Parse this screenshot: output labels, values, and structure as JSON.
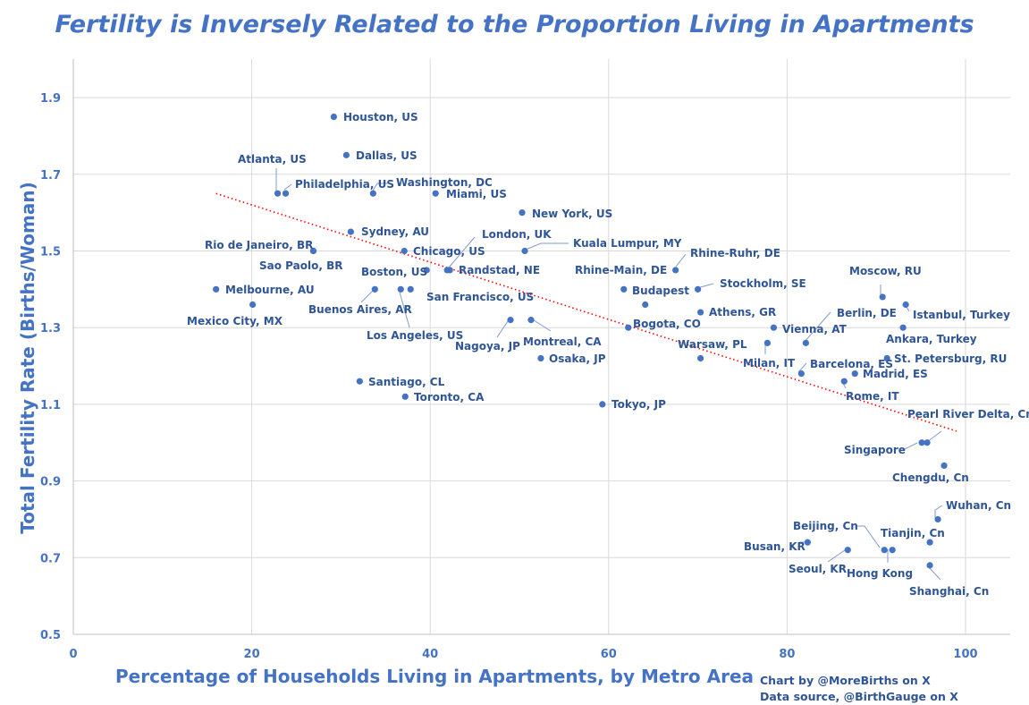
{
  "chart_data": {
    "type": "scatter",
    "title": "Fertility is Inversely Related to the Proportion Living in Apartments",
    "xlabel": "Percentage of Households Living in Apartments, by Metro Area",
    "ylabel": "Total Fertility Rate (Births/Woman)",
    "xlim": [
      0,
      105
    ],
    "ylim": [
      0.5,
      2.0
    ],
    "x_ticks": [
      "0",
      "20",
      "40",
      "60",
      "80",
      "100"
    ],
    "y_ticks": [
      "0.5",
      "0.7",
      "0.9",
      "1.1",
      "1.3",
      "1.5",
      "1.7",
      "1.9"
    ],
    "grid": "on",
    "trendline": {
      "style": "dotted",
      "color": "#ff0000",
      "x": [
        16,
        99
      ],
      "y": [
        1.65,
        1.03
      ]
    },
    "marker_color": "#4472c4",
    "points": [
      {
        "label": "Houston, US",
        "x": 29.2,
        "y": 1.85
      },
      {
        "label": "Dallas, US",
        "x": 30.6,
        "y": 1.75
      },
      {
        "label": "Atlanta, US",
        "x": 22.9,
        "y": 1.65
      },
      {
        "label": "Philadelphia, US",
        "x": 23.8,
        "y": 1.65
      },
      {
        "label": "Washington, DC",
        "x": 33.6,
        "y": 1.65
      },
      {
        "label": "Miami, US",
        "x": 40.6,
        "y": 1.65
      },
      {
        "label": "New York, US",
        "x": 50.3,
        "y": 1.6
      },
      {
        "label": "Sydney, AU",
        "x": 31.1,
        "y": 1.55
      },
      {
        "label": "Rio de Janeiro, BR",
        "x": 26.9,
        "y": 1.5
      },
      {
        "label": "Sao Paolo, BR",
        "x": 26.9,
        "y": 1.5
      },
      {
        "label": "Chicago, US",
        "x": 37.1,
        "y": 1.5
      },
      {
        "label": "London, UK",
        "x": 42.2,
        "y": 1.45
      },
      {
        "label": "Kuala Lumpur, MY",
        "x": 50.6,
        "y": 1.5
      },
      {
        "label": "Boston, US",
        "x": 39.6,
        "y": 1.45
      },
      {
        "label": "Randstad, NE",
        "x": 41.9,
        "y": 1.45
      },
      {
        "label": "Rhine-Ruhr, DE",
        "x": 67.5,
        "y": 1.45
      },
      {
        "label": "Rhine-Main, DE",
        "x": 61.7,
        "y": 1.4
      },
      {
        "label": "Budapest",
        "x": 64.1,
        "y": 1.36
      },
      {
        "label": "Stockholm, SE",
        "x": 70,
        "y": 1.4
      },
      {
        "label": "Melbourne, AU",
        "x": 16,
        "y": 1.4
      },
      {
        "label": "Mexico City, MX",
        "x": 20.1,
        "y": 1.36
      },
      {
        "label": "Buenos Aires, AR",
        "x": 33.8,
        "y": 1.4
      },
      {
        "label": "Los Angeles, US",
        "x": 36.7,
        "y": 1.4
      },
      {
        "label": "San Francisco, US",
        "x": 37.8,
        "y": 1.4
      },
      {
        "label": "Nagoya, JP",
        "x": 49,
        "y": 1.32
      },
      {
        "label": "Montreal, CA",
        "x": 51.3,
        "y": 1.32
      },
      {
        "label": "Bogota, CO",
        "x": 62.2,
        "y": 1.3
      },
      {
        "label": "Athens, GR",
        "x": 70.3,
        "y": 1.34
      },
      {
        "label": "Vienna, AT",
        "x": 78.5,
        "y": 1.3
      },
      {
        "label": "Berlin, DE",
        "x": 82.1,
        "y": 1.26
      },
      {
        "label": "Moscow, RU",
        "x": 90.7,
        "y": 1.38
      },
      {
        "label": "Istanbul, Turkey",
        "x": 93.3,
        "y": 1.36
      },
      {
        "label": "Ankara, Turkey",
        "x": 93,
        "y": 1.3
      },
      {
        "label": "Milan, IT",
        "x": 77.8,
        "y": 1.26
      },
      {
        "label": "Warsaw, PL",
        "x": 70.3,
        "y": 1.22
      },
      {
        "label": "Osaka, JP",
        "x": 52.4,
        "y": 1.22
      },
      {
        "label": "Barcelona, ES",
        "x": 81.6,
        "y": 1.18
      },
      {
        "label": "St. Petersburg, RU",
        "x": 91.2,
        "y": 1.22
      },
      {
        "label": "Madrid, ES",
        "x": 87.6,
        "y": 1.18
      },
      {
        "label": "Rome, IT",
        "x": 86.4,
        "y": 1.16
      },
      {
        "label": "Santiago, CL",
        "x": 32.1,
        "y": 1.16
      },
      {
        "label": "Toronto, CA",
        "x": 37.2,
        "y": 1.12
      },
      {
        "label": "Tokyo, JP",
        "x": 59.3,
        "y": 1.1
      },
      {
        "label": "Pearl River Delta, Cn",
        "x": 95.7,
        "y": 1.0
      },
      {
        "label": "Singapore",
        "x": 95.1,
        "y": 1.0
      },
      {
        "label": "Chengdu, Cn",
        "x": 97.6,
        "y": 0.94
      },
      {
        "label": "Wuhan, Cn",
        "x": 96.9,
        "y": 0.8
      },
      {
        "label": "Beijing, Cn",
        "x": 90.9,
        "y": 0.72
      },
      {
        "label": "Tianjin, Cn",
        "x": 96,
        "y": 0.74
      },
      {
        "label": "Busan, KR",
        "x": 82.3,
        "y": 0.74
      },
      {
        "label": "Seoul, KR",
        "x": 86.8,
        "y": 0.72
      },
      {
        "label": "Hong Kong",
        "x": 91.8,
        "y": 0.72
      },
      {
        "label": "Shanghai, Cn",
        "x": 96,
        "y": 0.68
      }
    ]
  },
  "credit": {
    "line1": "Chart by @MoreBirths on X",
    "line2": "Data source, @BirthGauge on X"
  }
}
